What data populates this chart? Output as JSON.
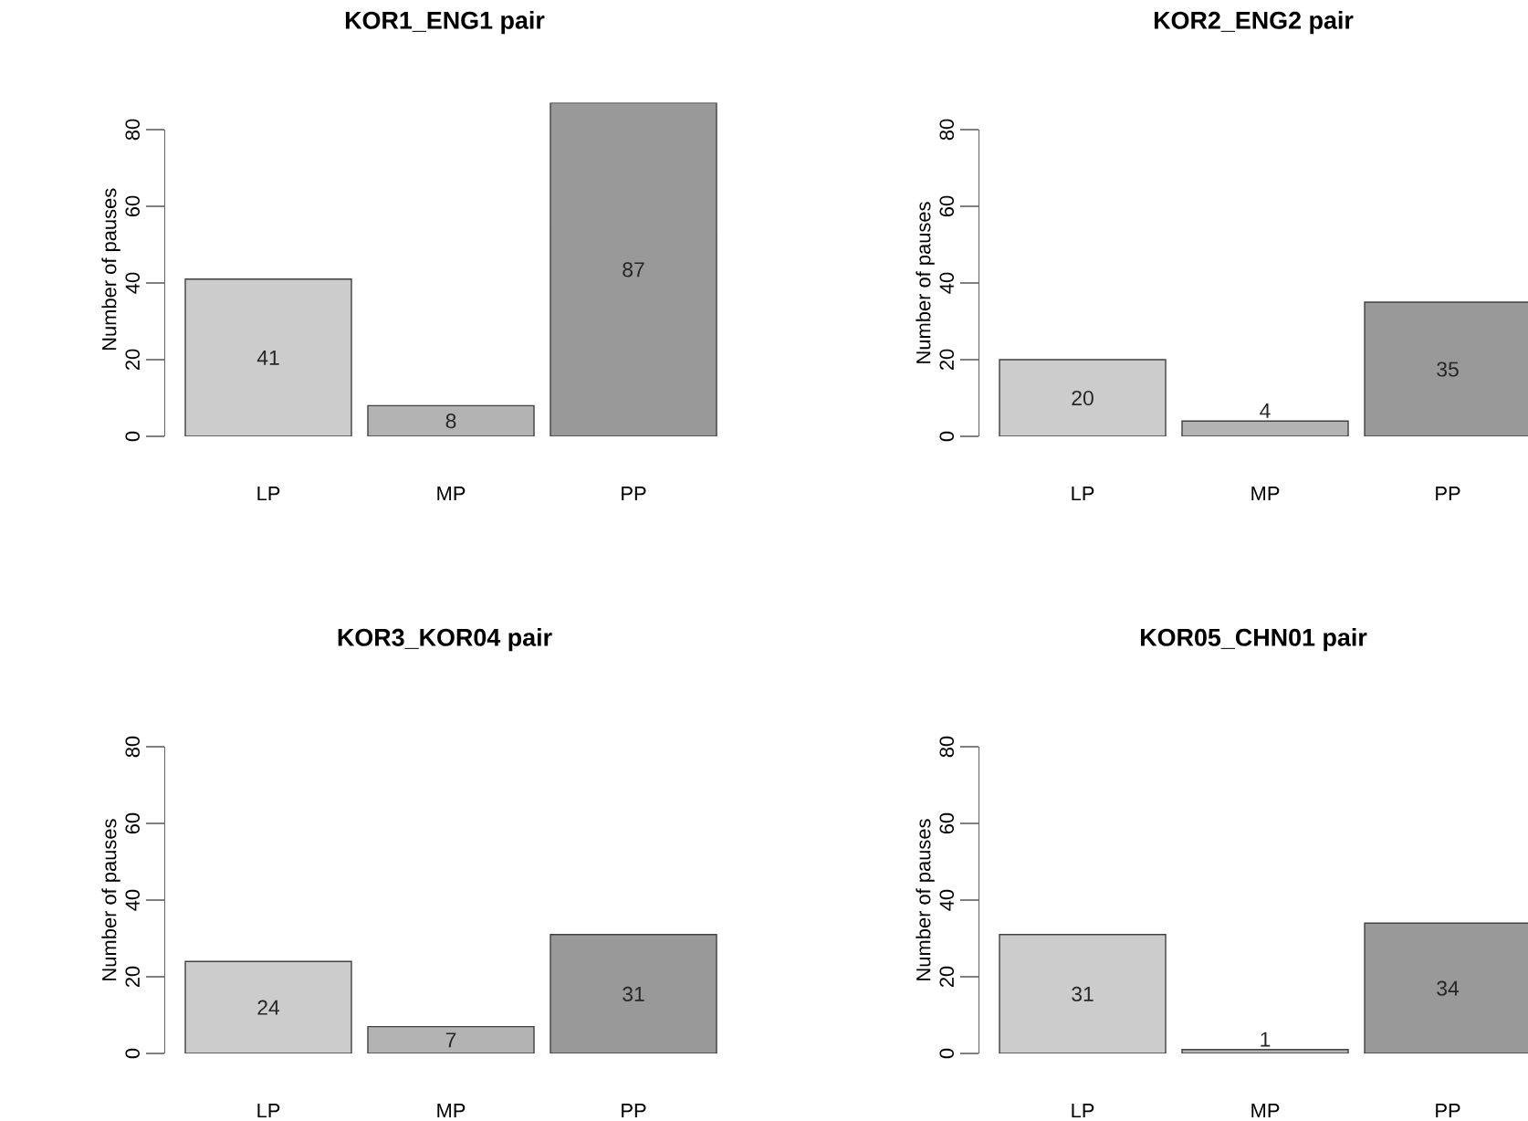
{
  "chart_data": [
    {
      "type": "bar",
      "title": "KOR1_ENG1 pair",
      "ylabel": "Number of pauses",
      "categories": [
        "LP",
        "MP",
        "PP"
      ],
      "values": [
        41,
        8,
        87
      ],
      "colors": [
        "#cccccc",
        "#b3b3b3",
        "#999999"
      ],
      "ylim": [
        0,
        87
      ],
      "yticks": [
        0,
        20,
        40,
        60,
        80
      ],
      "data_labels": true
    },
    {
      "type": "bar",
      "title": "KOR2_ENG2 pair",
      "ylabel": "Number of pauses",
      "categories": [
        "LP",
        "MP",
        "PP"
      ],
      "values": [
        20,
        4,
        35
      ],
      "colors": [
        "#cccccc",
        "#b3b3b3",
        "#999999"
      ],
      "ylim": [
        0,
        80
      ],
      "yticks": [
        0,
        20,
        40,
        60,
        80
      ],
      "data_labels": true
    },
    {
      "type": "bar",
      "title": "KOR3_KOR04 pair",
      "ylabel": "Number of pauses",
      "categories": [
        "LP",
        "MP",
        "PP"
      ],
      "values": [
        24,
        7,
        31
      ],
      "colors": [
        "#cccccc",
        "#b3b3b3",
        "#999999"
      ],
      "ylim": [
        0,
        80
      ],
      "yticks": [
        0,
        20,
        40,
        60,
        80
      ],
      "data_labels": true
    },
    {
      "type": "bar",
      "title": "KOR05_CHN01 pair",
      "ylabel": "Number of pauses",
      "categories": [
        "LP",
        "MP",
        "PP"
      ],
      "values": [
        31,
        1,
        34
      ],
      "colors": [
        "#cccccc",
        "#b3b3b3",
        "#999999"
      ],
      "ylim": [
        0,
        80
      ],
      "yticks": [
        0,
        20,
        40,
        60,
        80
      ],
      "data_labels": true
    }
  ]
}
